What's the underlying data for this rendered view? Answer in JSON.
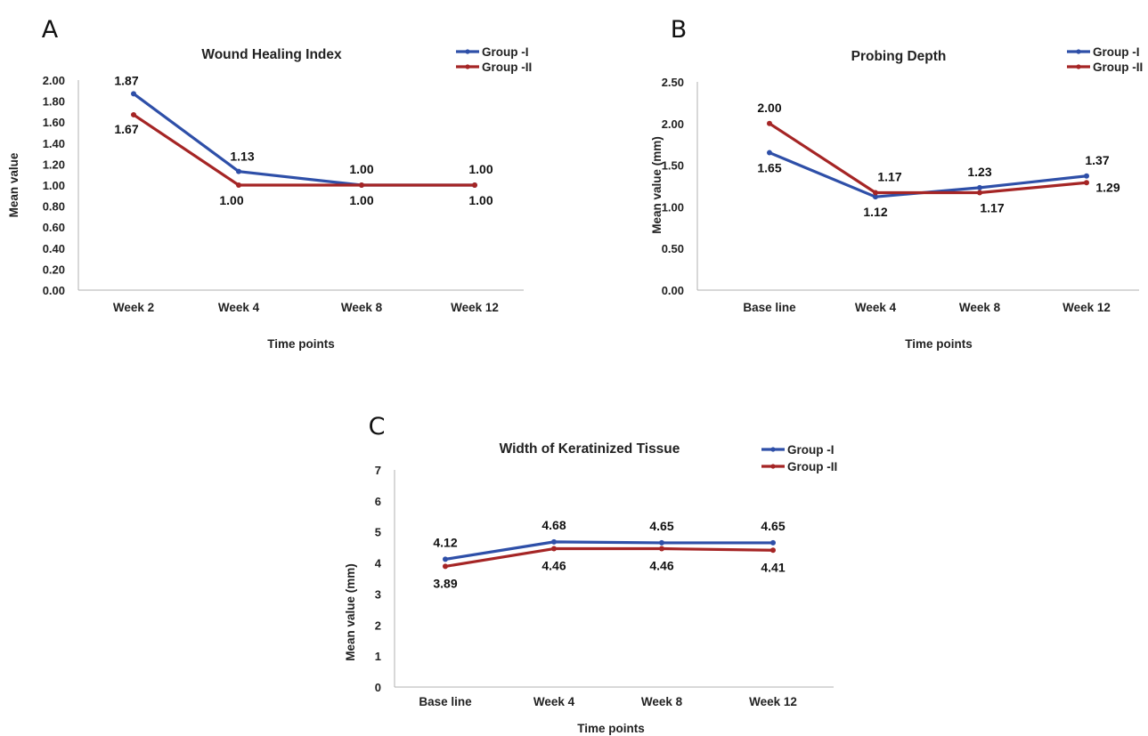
{
  "chart_data": [
    {
      "panel_label": "A",
      "type": "line",
      "title": "Wound Healing Index",
      "xlabel": "Time points",
      "ylabel": "Mean value",
      "categories": [
        "Week 2",
        "Week 4",
        "Week 8",
        "Week 12"
      ],
      "ylim": [
        0,
        2
      ],
      "yticks": [
        "0.00",
        "0.20",
        "0.40",
        "0.60",
        "0.80",
        "1.00",
        "1.20",
        "1.40",
        "1.60",
        "1.80",
        "2.00"
      ],
      "series": [
        {
          "name": "Group -I",
          "color": "#2e4fa8",
          "values": [
            1.87,
            1.13,
            1.0,
            1.0
          ],
          "labels": [
            "1.87",
            "1.13",
            "1.00",
            "1.00"
          ]
        },
        {
          "name": "Group -II",
          "color": "#a52525",
          "values": [
            1.67,
            1.0,
            1.0,
            1.0
          ],
          "labels": [
            "1.67",
            "1.00",
            "1.00",
            "1.00"
          ]
        }
      ],
      "legend": "top-right",
      "grid": false
    },
    {
      "panel_label": "B",
      "type": "line",
      "title": "Probing Depth",
      "xlabel": "Time points",
      "ylabel": "Mean value (mm)",
      "categories": [
        "Base line",
        "Week 4",
        "Week 8",
        "Week 12"
      ],
      "ylim": [
        0,
        2.5
      ],
      "yticks": [
        "0.00",
        "0.50",
        "1.00",
        "1.50",
        "2.00",
        "2.50"
      ],
      "series": [
        {
          "name": "Group -I",
          "color": "#2e4fa8",
          "values": [
            1.65,
            1.12,
            1.23,
            1.37
          ],
          "labels": [
            "1.65",
            "1.12",
            "1.23",
            "1.37"
          ]
        },
        {
          "name": "Group -II",
          "color": "#a52525",
          "values": [
            2.0,
            1.17,
            1.17,
            1.29
          ],
          "labels": [
            "2.00",
            "1.17",
            "1.17",
            "1.29"
          ]
        }
      ],
      "legend": "top-right",
      "grid": false
    },
    {
      "panel_label": "C",
      "type": "line",
      "title": "Width of Keratinized Tissue",
      "xlabel": "Time points",
      "ylabel": "Mean value (mm)",
      "categories": [
        "Base line",
        "Week 4",
        "Week 8",
        "Week 12"
      ],
      "ylim": [
        0,
        7
      ],
      "yticks": [
        "0",
        "1",
        "2",
        "3",
        "4",
        "5",
        "6",
        "7"
      ],
      "series": [
        {
          "name": "Group -I",
          "color": "#2e4fa8",
          "values": [
            4.12,
            4.68,
            4.65,
            4.65
          ],
          "labels": [
            "4.12",
            "4.68",
            "4.65",
            "4.65"
          ]
        },
        {
          "name": "Group -II",
          "color": "#a52525",
          "values": [
            3.89,
            4.46,
            4.46,
            4.41
          ],
          "labels": [
            "3.89",
            "4.46",
            "4.46",
            "4.41"
          ]
        }
      ],
      "legend": "top-right",
      "grid": false
    }
  ]
}
